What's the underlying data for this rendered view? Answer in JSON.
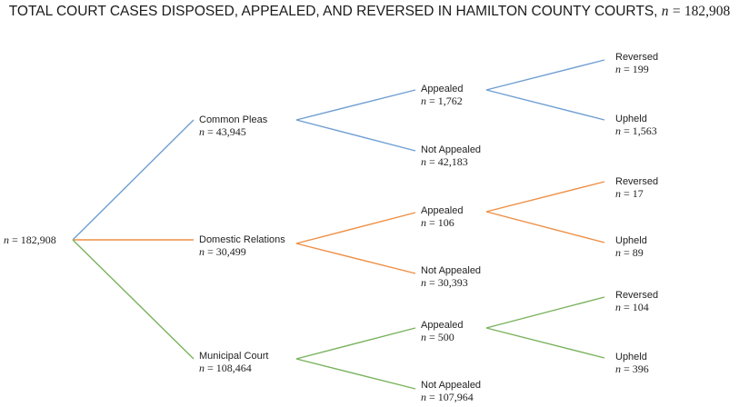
{
  "title": {
    "text": "TOTAL COURT CASES DISPOSED, APPEALED, AND REVERSED IN HAMILTON COUNTY COURTS,",
    "var": "n",
    "eq": "=",
    "value": "182,908"
  },
  "colors": {
    "blue": "#6f9fd2",
    "orange": "#ee8f45",
    "green": "#7ab25e"
  },
  "root": {
    "var": "n",
    "eq": "=",
    "value": "182,908"
  },
  "courts": [
    {
      "label": "Common Pleas",
      "var": "n",
      "eq": "=",
      "value": "43,945",
      "color": "blue",
      "appealed": {
        "label": "Appealed",
        "var": "n",
        "eq": "=",
        "value": "1,762"
      },
      "not_appealed": {
        "label": "Not Appealed",
        "var": "n",
        "eq": "=",
        "value": "42,183"
      },
      "reversed": {
        "label": "Reversed",
        "var": "n",
        "eq": "=",
        "value": "199"
      },
      "upheld": {
        "label": "Upheld",
        "var": "n",
        "eq": "=",
        "value": "1,563"
      }
    },
    {
      "label": "Domestic Relations",
      "var": "n",
      "eq": "=",
      "value": "30,499",
      "color": "orange",
      "appealed": {
        "label": "Appealed",
        "var": "n",
        "eq": "=",
        "value": "106"
      },
      "not_appealed": {
        "label": "Not Appealed",
        "var": "n",
        "eq": "=",
        "value": "30,393"
      },
      "reversed": {
        "label": "Reversed",
        "var": "n",
        "eq": "=",
        "value": "17"
      },
      "upheld": {
        "label": "Upheld",
        "var": "n",
        "eq": "=",
        "value": "89"
      }
    },
    {
      "label": "Municipal Court",
      "var": "n",
      "eq": "=",
      "value": "108,464",
      "color": "green",
      "appealed": {
        "label": "Appealed",
        "var": "n",
        "eq": "=",
        "value": "500"
      },
      "not_appealed": {
        "label": "Not Appealed",
        "var": "n",
        "eq": "=",
        "value": "107,964"
      },
      "reversed": {
        "label": "Reversed",
        "var": "n",
        "eq": "=",
        "value": "104"
      },
      "upheld": {
        "label": "Upheld",
        "var": "n",
        "eq": "=",
        "value": "396"
      }
    }
  ]
}
